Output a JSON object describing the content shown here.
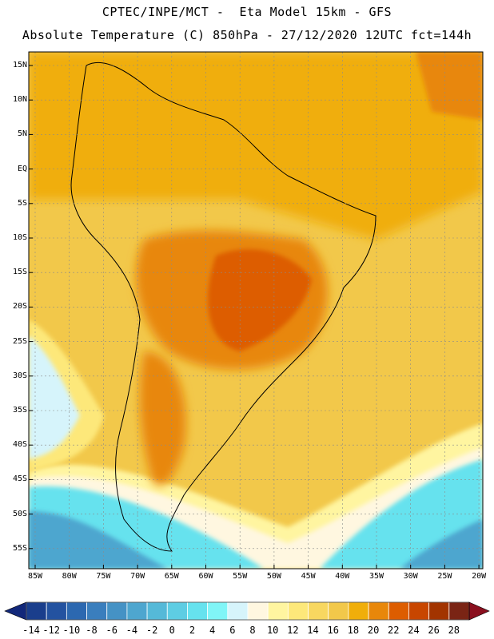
{
  "title": {
    "line1": "CPTEC/INPE/MCT -  Eta Model 15km - GFS",
    "line2": "Absolute Temperature (C) 850hPa - 27/12/2020 12UTC fct=144h"
  },
  "map": {
    "lat_labels": [
      "15N",
      "10N",
      "5N",
      "EQ",
      "5S",
      "10S",
      "15S",
      "20S",
      "25S",
      "30S",
      "35S",
      "40S",
      "45S",
      "50S",
      "55S"
    ],
    "lon_labels": [
      "85W",
      "80W",
      "75W",
      "70W",
      "65W",
      "60W",
      "55W",
      "50W",
      "45W",
      "40W",
      "35W",
      "30W",
      "25W",
      "20W"
    ]
  },
  "colorbar": {
    "labels": [
      "-14",
      "-12",
      "-10",
      "-8",
      "-6",
      "-4",
      "-2",
      "0",
      "2",
      "4",
      "6",
      "8",
      "10",
      "12",
      "14",
      "16",
      "18",
      "20",
      "22",
      "24",
      "26",
      "28"
    ],
    "colors": [
      "#1a3e8c",
      "#2352a0",
      "#2c68b0",
      "#3a7ebd",
      "#4592c5",
      "#4ea6cf",
      "#55b9d8",
      "#5ecde3",
      "#66e2ee",
      "#80f5f7",
      "#d6f4fb",
      "#fff7e0",
      "#fff5a0",
      "#fde87a",
      "#f8d760",
      "#f2c84a",
      "#f0ae0a",
      "#e8870a",
      "#dd5d00",
      "#c84600",
      "#a23400",
      "#7a2414"
    ],
    "under_color": "#12287a",
    "over_color": "#8a0f1e"
  }
}
